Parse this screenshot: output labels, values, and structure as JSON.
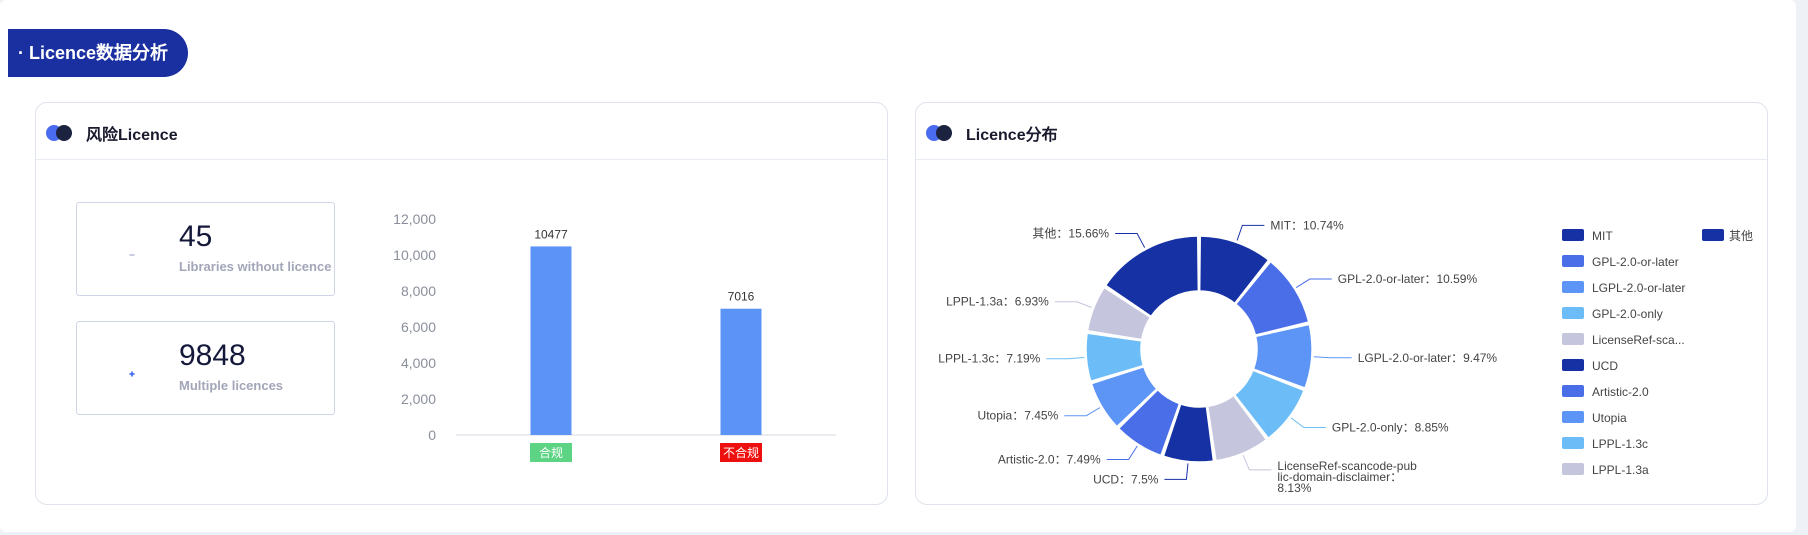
{
  "section_title": "· Licence数据分析",
  "risk_card": {
    "title": "风险Licence",
    "stats": [
      {
        "value": "45",
        "label": "Libraries without licence",
        "icon": "licence-minus-icon",
        "color": "#c3c6df"
      },
      {
        "value": "9848",
        "label": "Multiple licences",
        "icon": "licence-plus-icon",
        "color": "#4a72f0"
      }
    ]
  },
  "dist_card": {
    "title": "Licence分布"
  },
  "chart_data": [
    {
      "type": "bar",
      "categories": [
        "合规",
        "不合规"
      ],
      "category_colors": [
        "#5dd384",
        "#ee0f0f"
      ],
      "values": [
        10477,
        7016
      ],
      "bar_color": "#5b93f7",
      "ylim": [
        0,
        12000
      ],
      "yticks": [
        "0",
        "2,000",
        "4,000",
        "6,000",
        "8,000",
        "10,000",
        "12,000"
      ]
    },
    {
      "type": "pie",
      "donut": true,
      "slices": [
        {
          "name": "MIT",
          "label": "MIT：10.74%",
          "value": 10.74,
          "color": "#1531a4"
        },
        {
          "name": "GPL-2.0-or-later",
          "label": "GPL-2.0-or-later：10.59%",
          "value": 10.59,
          "color": "#4a6ee8"
        },
        {
          "name": "LGPL-2.0-or-later",
          "label": "LGPL-2.0-or-later：9.47%",
          "value": 9.47,
          "color": "#5c95f5"
        },
        {
          "name": "GPL-2.0-only",
          "label": "GPL-2.0-only：8.85%",
          "value": 8.85,
          "color": "#6cbdf7"
        },
        {
          "name": "LicenseRef-sca...",
          "label": "LicenseRef-scancode-public-domain-disclaimer：8.13%",
          "label_lines": [
            "LicenseRef-scancode-pub",
            "lic-domain-disclaimer：",
            "8.13%"
          ],
          "value": 8.13,
          "color": "#c5c5dd"
        },
        {
          "name": "UCD",
          "label": "UCD：7.5%",
          "value": 7.5,
          "color": "#1531a4"
        },
        {
          "name": "Artistic-2.0",
          "label": "Artistic-2.0：7.49%",
          "value": 7.49,
          "color": "#4a6ee8"
        },
        {
          "name": "Utopia",
          "label": "Utopia：7.45%",
          "value": 7.45,
          "color": "#5c95f5"
        },
        {
          "name": "LPPL-1.3c",
          "label": "LPPL-1.3c：7.19%",
          "value": 7.19,
          "color": "#6cbdf7"
        },
        {
          "name": "LPPL-1.3a",
          "label": "LPPL-1.3a：6.93%",
          "value": 6.93,
          "color": "#c5c5dd"
        },
        {
          "name": "其他",
          "label": "其他：15.66%",
          "value": 15.66,
          "color": "#1531a4"
        }
      ],
      "legend_position": "right"
    }
  ]
}
